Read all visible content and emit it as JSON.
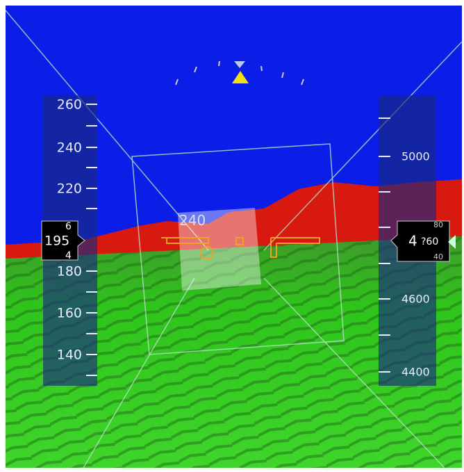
{
  "speed_tape": {
    "labels": [
      "260",
      "240",
      "220",
      "180",
      "160",
      "140"
    ],
    "readout": "195",
    "roll_above": "6",
    "roll_below": "4"
  },
  "heading_box": {
    "label": "240"
  },
  "altitude_tape": {
    "labels": [
      "5000",
      "4600",
      "4400"
    ],
    "readout_thousands": "4",
    "readout_hundreds": "?60",
    "roll_above": "80",
    "roll_below": "40"
  }
}
